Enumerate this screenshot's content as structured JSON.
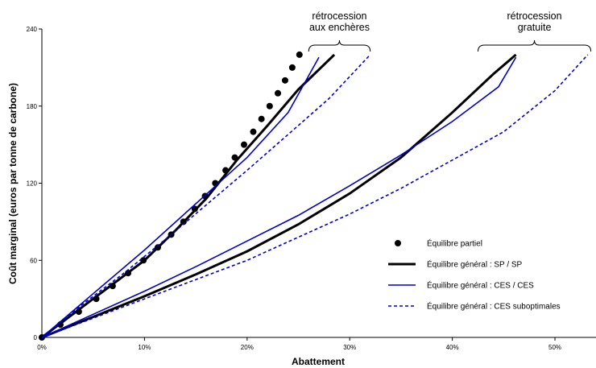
{
  "chart_data": {
    "type": "line",
    "xlabel": "Abattement",
    "ylabel": "Coût marginal (euros par tonne de carbone)",
    "xlim": [
      0,
      54
    ],
    "ylim": [
      0,
      240
    ],
    "x_ticks": [
      "0%",
      "10%",
      "20%",
      "30%",
      "40%",
      "50%"
    ],
    "y_ticks": [
      "0",
      "60",
      "120",
      "180",
      "240"
    ],
    "grid": false,
    "legend_position": "bottom-right",
    "series": [
      {
        "name": "Équilibre partiel",
        "style": "dots",
        "color": "#000000",
        "points": [
          [
            0,
            0
          ],
          [
            1.8,
            10
          ],
          [
            3.6,
            20
          ],
          [
            5.3,
            30
          ],
          [
            6.9,
            40
          ],
          [
            8.4,
            50
          ],
          [
            9.9,
            60
          ],
          [
            11.3,
            70
          ],
          [
            12.6,
            80
          ],
          [
            13.8,
            90
          ],
          [
            14.9,
            100
          ],
          [
            15.9,
            110
          ],
          [
            16.9,
            120
          ],
          [
            17.9,
            130
          ],
          [
            18.8,
            140
          ],
          [
            19.7,
            150
          ],
          [
            20.6,
            160
          ],
          [
            21.4,
            170
          ],
          [
            22.2,
            180
          ],
          [
            23.0,
            190
          ],
          [
            23.7,
            200
          ],
          [
            24.4,
            210
          ],
          [
            25.1,
            220
          ]
        ]
      },
      {
        "name": "Équilibre général : SP / SP",
        "style": "thick",
        "color": "#000000",
        "lines": [
          [
            [
              0,
              0
            ],
            [
              5,
              30
            ],
            [
              10,
              60
            ],
            [
              13,
              83
            ],
            [
              16,
              108
            ],
            [
              19,
              138
            ],
            [
              22,
              165
            ],
            [
              25,
              193
            ],
            [
              28.5,
              220
            ]
          ],
          [
            [
              0,
              0
            ],
            [
              5,
              16
            ],
            [
              10,
              32
            ],
            [
              15,
              49
            ],
            [
              20,
              67
            ],
            [
              25,
              88
            ],
            [
              30,
              112
            ],
            [
              35,
              140
            ],
            [
              40,
              175
            ],
            [
              44,
              205
            ],
            [
              46.2,
              220
            ]
          ]
        ]
      },
      {
        "name": "Équilibre général : CES / CES",
        "style": "solid",
        "color": "#0000CC",
        "lines": [
          [
            [
              0,
              0
            ],
            [
              5,
              34
            ],
            [
              10,
              68
            ],
            [
              15,
              104
            ],
            [
              20,
              140
            ],
            [
              24,
              175
            ],
            [
              27,
              218
            ]
          ],
          [
            [
              0,
              0
            ],
            [
              5,
              18
            ],
            [
              10,
              36
            ],
            [
              15,
              55
            ],
            [
              20,
              75
            ],
            [
              25,
              95
            ],
            [
              30,
              118
            ],
            [
              35,
              142
            ],
            [
              40,
              168
            ],
            [
              44.5,
              195
            ],
            [
              46.2,
              218
            ]
          ]
        ]
      },
      {
        "name": "Équilibre général : CES suboptimales",
        "style": "dashed",
        "color": "#0000CC",
        "lines": [
          [
            [
              0,
              0
            ],
            [
              4,
              26
            ],
            [
              8,
              50
            ],
            [
              12,
              76
            ],
            [
              16,
              103
            ],
            [
              20,
              130
            ],
            [
              24,
              158
            ],
            [
              28,
              186
            ],
            [
              32,
              220
            ]
          ],
          [
            [
              0,
              0
            ],
            [
              5,
              15
            ],
            [
              10,
              30
            ],
            [
              15,
              45
            ],
            [
              20,
              60
            ],
            [
              25,
              78
            ],
            [
              30,
              96
            ],
            [
              35,
              116
            ],
            [
              40,
              138
            ],
            [
              45,
              160
            ],
            [
              50,
              192
            ],
            [
              53.2,
              220
            ]
          ]
        ]
      }
    ],
    "annotations": [
      {
        "lines": [
          "rétrocession",
          "aux enchères"
        ],
        "bracket": [
          26,
          32
        ]
      },
      {
        "lines": [
          "rétrocession",
          "gratuite"
        ],
        "bracket": [
          42.5,
          53.5
        ]
      }
    ]
  }
}
